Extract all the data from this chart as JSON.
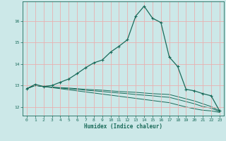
{
  "xlabel": "Humidex (Indice chaleur)",
  "bg_color": "#cce8e8",
  "grid_color": "#e8b0b0",
  "line_color": "#1a6b5a",
  "xlim": [
    -0.5,
    23.5
  ],
  "ylim": [
    11.6,
    16.9
  ],
  "yticks": [
    12,
    13,
    14,
    15,
    16
  ],
  "xticks": [
    0,
    1,
    2,
    3,
    4,
    5,
    6,
    7,
    8,
    9,
    10,
    11,
    12,
    13,
    14,
    15,
    16,
    17,
    18,
    19,
    20,
    21,
    22,
    23
  ],
  "main_series": [
    12.85,
    13.05,
    12.95,
    13.0,
    13.15,
    13.3,
    13.55,
    13.82,
    14.05,
    14.18,
    14.55,
    14.82,
    15.12,
    16.22,
    16.68,
    16.12,
    15.92,
    14.32,
    13.88,
    12.82,
    12.75,
    12.62,
    12.52,
    11.82
  ],
  "flat_series": [
    [
      12.85,
      13.0,
      12.95,
      12.92,
      12.9,
      12.88,
      12.85,
      12.82,
      12.8,
      12.78,
      12.75,
      12.72,
      12.7,
      12.68,
      12.65,
      12.62,
      12.6,
      12.58,
      12.48,
      12.38,
      12.28,
      12.15,
      12.02,
      11.82
    ],
    [
      12.85,
      13.0,
      12.95,
      12.92,
      12.88,
      12.85,
      12.82,
      12.78,
      12.75,
      12.72,
      12.68,
      12.65,
      12.62,
      12.58,
      12.55,
      12.52,
      12.48,
      12.45,
      12.35,
      12.25,
      12.15,
      12.02,
      11.95,
      11.78
    ],
    [
      12.85,
      13.0,
      12.95,
      12.9,
      12.85,
      12.8,
      12.75,
      12.7,
      12.65,
      12.6,
      12.55,
      12.5,
      12.45,
      12.4,
      12.35,
      12.3,
      12.25,
      12.2,
      12.1,
      12.0,
      11.92,
      11.85,
      11.82,
      11.75
    ]
  ]
}
